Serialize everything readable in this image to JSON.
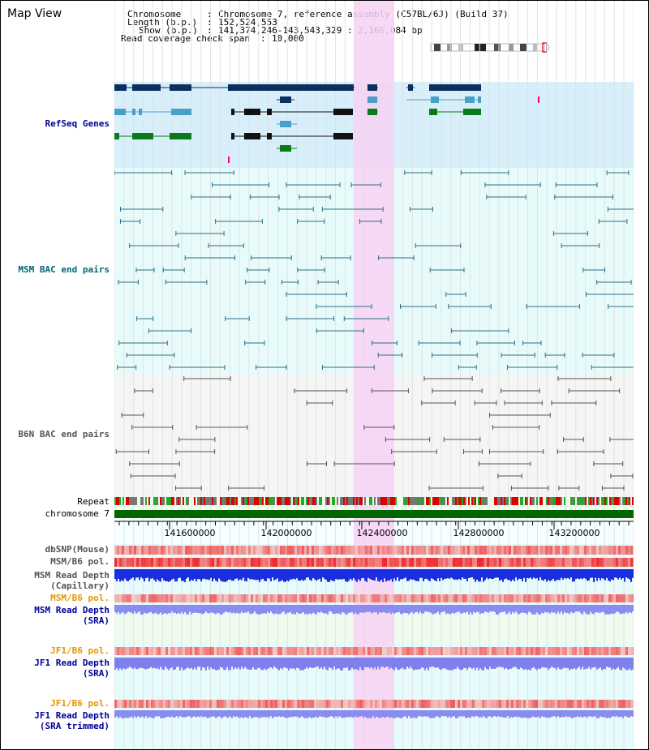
{
  "title": "Map View",
  "header": {
    "chromosome_key": "Chromosome",
    "chromosome_val": "Chromosome 7, reference assembly (C57BL/6J) (Build 37)",
    "length_key": "Length (b.p.)",
    "length_val": "152,524,553",
    "show_key": "Show (b.p.)",
    "show_val": "141,374,246-143,543,329 : 2,169,084 bp",
    "read_key": "Read coverage check span",
    "read_val": "10,000"
  },
  "tracks": {
    "refseq": "RefSeq Genes",
    "msm_bac": "MSM BAC end pairs",
    "b6n_bac": "B6N BAC end pairs",
    "repeat": "Repeat",
    "chromosome": "chromosome 7",
    "dbsnp": "dbSNP(Mouse)",
    "msm_b6_pol_1": "MSM/B6 pol.",
    "msm_read_depth_cap_1": "MSM Read Depth",
    "msm_read_depth_cap_2": "(Capillary)",
    "msm_b6_pol_2": "MSM/B6 pol.",
    "msm_read_depth_sra_1": "MSM Read Depth",
    "msm_read_depth_sra_2": "(SRA)",
    "jf1_b6_pol_1": "JF1/B6 pol.",
    "jf1_read_depth_sra_1": "JF1 Read Depth",
    "jf1_read_depth_sra_2": "(SRA)",
    "jf1_b6_pol_2": "JF1/B6 pol.",
    "jf1_read_depth_trim_1": "JF1 Read Depth",
    "jf1_read_depth_trim_2": "(SRA trimmed)"
  },
  "axis_ticks": [
    "141600000",
    "142000000",
    "142400000",
    "142800000",
    "143200000"
  ],
  "colors": {
    "refseq_bg": "#d6effa",
    "msm_bg": "#e8fbfb",
    "b6n_bg": "#f4f6f6",
    "highlight": "#f7d2f3",
    "label_blue": "#000099",
    "label_teal": "#006677",
    "label_gray": "#555555",
    "label_orange": "#e69500",
    "chromosome_green": "#006600"
  }
}
